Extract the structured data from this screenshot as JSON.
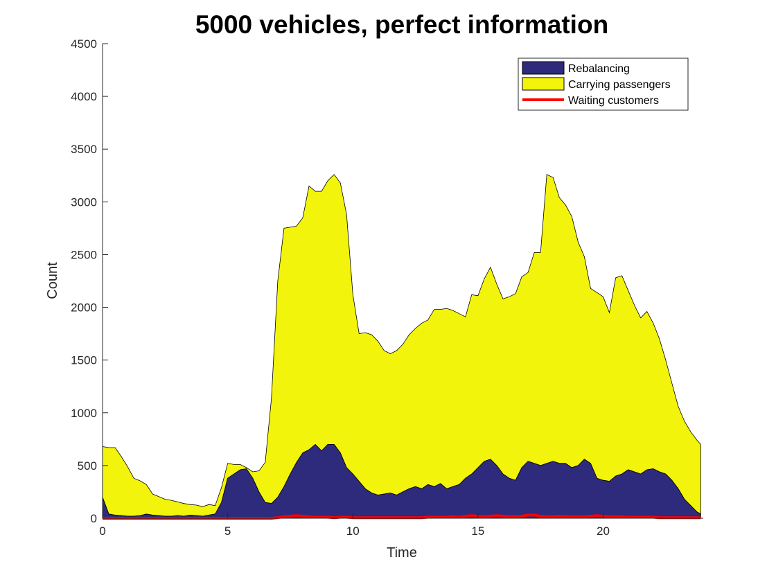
{
  "chart_data": {
    "type": "area",
    "title": "5000 vehicles, perfect information",
    "xlabel": "Time",
    "ylabel": "Count",
    "xlim": [
      0,
      24
    ],
    "ylim": [
      0,
      4500
    ],
    "xticks": [
      0,
      5,
      10,
      15,
      20
    ],
    "yticks": [
      0,
      500,
      1000,
      1500,
      2000,
      2500,
      3000,
      3500,
      4000,
      4500
    ],
    "stacked": true,
    "grid": false,
    "legend_position": "top-right",
    "x": [
      0.0,
      0.25,
      0.5,
      0.75,
      1.0,
      1.25,
      1.5,
      1.75,
      2.0,
      2.25,
      2.5,
      2.75,
      3.0,
      3.25,
      3.5,
      3.75,
      4.0,
      4.25,
      4.5,
      4.75,
      5.0,
      5.25,
      5.5,
      5.75,
      6.0,
      6.25,
      6.5,
      6.75,
      7.0,
      7.25,
      7.5,
      7.75,
      8.0,
      8.25,
      8.5,
      8.75,
      9.0,
      9.25,
      9.5,
      9.75,
      10.0,
      10.25,
      10.5,
      10.75,
      11.0,
      11.25,
      11.5,
      11.75,
      12.0,
      12.25,
      12.5,
      12.75,
      13.0,
      13.25,
      13.5,
      13.75,
      14.0,
      14.25,
      14.5,
      14.75,
      15.0,
      15.25,
      15.5,
      15.75,
      16.0,
      16.25,
      16.5,
      16.75,
      17.0,
      17.25,
      17.5,
      17.75,
      18.0,
      18.25,
      18.5,
      18.75,
      19.0,
      19.25,
      19.5,
      19.75,
      20.0,
      20.25,
      20.5,
      20.75,
      21.0,
      21.25,
      21.5,
      21.75,
      22.0,
      22.25,
      22.5,
      22.75,
      23.0,
      23.25,
      23.5,
      23.75,
      23.9
    ],
    "series": [
      {
        "name": "Rebalancing",
        "color": "#2e2a7c",
        "values": [
          200,
          40,
          30,
          25,
          20,
          20,
          25,
          40,
          30,
          25,
          20,
          20,
          25,
          20,
          30,
          25,
          20,
          30,
          40,
          150,
          380,
          420,
          460,
          470,
          380,
          250,
          150,
          140,
          200,
          300,
          420,
          530,
          620,
          650,
          700,
          640,
          700,
          700,
          620,
          480,
          420,
          350,
          280,
          240,
          220,
          230,
          240,
          220,
          250,
          280,
          300,
          280,
          320,
          300,
          330,
          280,
          300,
          320,
          380,
          420,
          480,
          540,
          560,
          500,
          420,
          380,
          360,
          480,
          540,
          520,
          500,
          520,
          540,
          520,
          520,
          480,
          500,
          560,
          520,
          380,
          360,
          350,
          400,
          420,
          460,
          440,
          420,
          460,
          470,
          440,
          420,
          360,
          280,
          180,
          120,
          60,
          40
        ]
      },
      {
        "name": "Carrying passengers",
        "color": "#f3f40b",
        "values": [
          480,
          630,
          640,
          560,
          470,
          360,
          330,
          280,
          200,
          180,
          160,
          150,
          130,
          120,
          100,
          100,
          90,
          100,
          80,
          140,
          140,
          90,
          50,
          10,
          60,
          200,
          380,
          1000,
          2050,
          2450,
          2340,
          2240,
          2230,
          2500,
          2400,
          2460,
          2500,
          2560,
          2560,
          2400,
          1700,
          1400,
          1480,
          1500,
          1460,
          1360,
          1320,
          1370,
          1400,
          1460,
          1500,
          1570,
          1560,
          1680,
          1650,
          1710,
          1670,
          1620,
          1530,
          1700,
          1630,
          1730,
          1820,
          1720,
          1660,
          1720,
          1770,
          1810,
          1790,
          2000,
          2020,
          2740,
          2690,
          2520,
          2450,
          2380,
          2120,
          1920,
          1660,
          1760,
          1740,
          1600,
          1880,
          1880,
          1700,
          1580,
          1480,
          1500,
          1380,
          1260,
          1080,
          920,
          780,
          740,
          700,
          680,
          660
        ]
      },
      {
        "name": "Waiting customers",
        "color": "#ff0000",
        "values": [
          0,
          0,
          0,
          0,
          0,
          0,
          0,
          0,
          0,
          0,
          0,
          0,
          0,
          0,
          0,
          0,
          0,
          0,
          0,
          0,
          0,
          0,
          0,
          0,
          0,
          0,
          0,
          0,
          5,
          15,
          20,
          25,
          20,
          15,
          10,
          10,
          10,
          5,
          10,
          10,
          5,
          5,
          5,
          5,
          5,
          5,
          5,
          5,
          5,
          5,
          5,
          5,
          10,
          10,
          10,
          10,
          15,
          10,
          20,
          25,
          20,
          15,
          20,
          25,
          20,
          15,
          15,
          20,
          30,
          30,
          20,
          15,
          15,
          20,
          15,
          15,
          15,
          15,
          20,
          25,
          20,
          15,
          15,
          15,
          10,
          10,
          10,
          10,
          10,
          5,
          5,
          5,
          5,
          5,
          5,
          5,
          5
        ]
      }
    ]
  }
}
